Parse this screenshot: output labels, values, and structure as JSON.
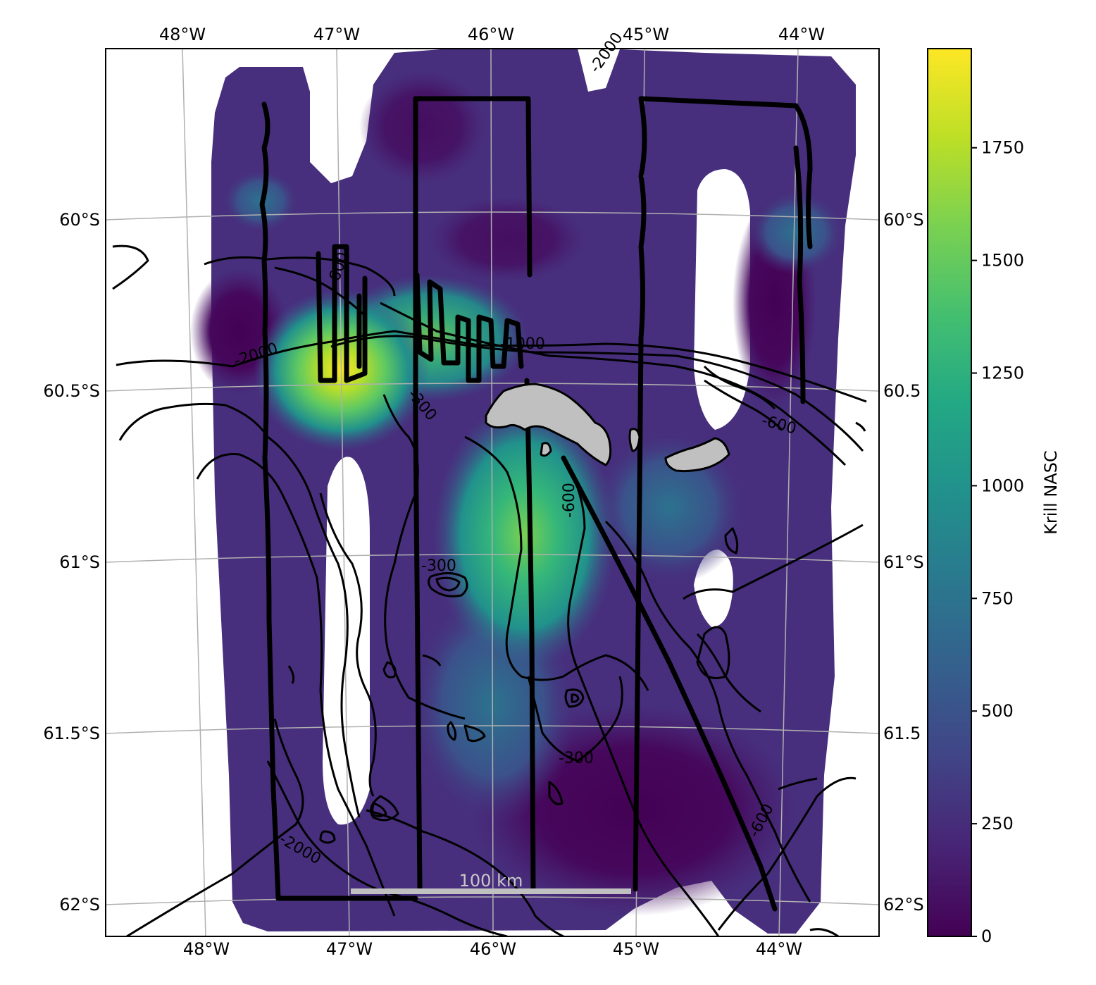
{
  "map": {
    "lon_labels_top": [
      "48°W",
      "47°W",
      "46°W",
      "45°W",
      "44°W"
    ],
    "lon_labels_bottom": [
      "48°W",
      "47°W",
      "46°W",
      "45°W",
      "44°W"
    ],
    "lat_labels_left": [
      "60°S",
      "60.5°S",
      "61°S",
      "61.5°S",
      "62°S"
    ],
    "lat_labels_right": [
      "60°S",
      "60.5",
      "61°S",
      "61.5",
      "62°S"
    ],
    "contour_labels": [
      "-2000",
      "-2000",
      "-2000",
      "-1000",
      "-600",
      "-600",
      "-600",
      "-600",
      "-300",
      "-300",
      "-300"
    ],
    "scale_bar_label": "100 km",
    "colors": {
      "land": "#c0c0c0",
      "contour": "#000000",
      "gridline": "#b0b0b0",
      "scale_bar": "#c0c0c0"
    }
  },
  "colorbar": {
    "label": "Krill NASC",
    "ticks": [
      "0",
      "250",
      "500",
      "750",
      "1000",
      "1250",
      "1500",
      "1750"
    ],
    "range": [
      0,
      1970
    ],
    "colormap": "viridis"
  }
}
